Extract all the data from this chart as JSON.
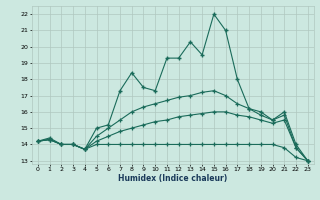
{
  "title": "",
  "xlabel": "Humidex (Indice chaleur)",
  "bg_color": "#cce8e0",
  "grid_color": "#b0c8c0",
  "line_color": "#1a6b5a",
  "xlim": [
    -0.5,
    23.5
  ],
  "ylim": [
    12.8,
    22.5
  ],
  "xticks": [
    0,
    1,
    2,
    3,
    4,
    5,
    6,
    7,
    8,
    9,
    10,
    11,
    12,
    13,
    14,
    15,
    16,
    17,
    18,
    19,
    20,
    21,
    22,
    23
  ],
  "yticks": [
    13,
    14,
    15,
    16,
    17,
    18,
    19,
    20,
    21,
    22
  ],
  "line1_x": [
    0,
    1,
    2,
    3,
    4,
    5,
    6,
    7,
    8,
    9,
    10,
    11,
    12,
    13,
    14,
    15,
    16,
    17,
    18,
    19,
    20,
    21,
    22,
    23
  ],
  "line1_y": [
    14.2,
    14.4,
    14.0,
    14.0,
    13.7,
    15.0,
    15.2,
    17.3,
    18.4,
    17.5,
    17.3,
    19.3,
    19.3,
    20.3,
    19.5,
    22.0,
    21.0,
    18.0,
    16.2,
    16.0,
    15.5,
    16.0,
    14.0,
    13.0
  ],
  "line2_x": [
    0,
    1,
    2,
    3,
    4,
    5,
    6,
    7,
    8,
    9,
    10,
    11,
    12,
    13,
    14,
    15,
    16,
    17,
    18,
    19,
    20,
    21,
    22,
    23
  ],
  "line2_y": [
    14.2,
    14.3,
    14.0,
    14.0,
    13.7,
    14.0,
    14.0,
    14.0,
    14.0,
    14.0,
    14.0,
    14.0,
    14.0,
    14.0,
    14.0,
    14.0,
    14.0,
    14.0,
    14.0,
    14.0,
    14.0,
    13.8,
    13.2,
    13.0
  ],
  "line3_x": [
    0,
    1,
    2,
    3,
    4,
    5,
    6,
    7,
    8,
    9,
    10,
    11,
    12,
    13,
    14,
    15,
    16,
    17,
    18,
    19,
    20,
    21,
    22,
    23
  ],
  "line3_y": [
    14.2,
    14.3,
    14.0,
    14.0,
    13.7,
    14.2,
    14.5,
    14.8,
    15.0,
    15.2,
    15.4,
    15.5,
    15.7,
    15.8,
    15.9,
    16.0,
    16.0,
    15.8,
    15.7,
    15.5,
    15.3,
    15.5,
    13.8,
    13.0
  ],
  "line4_x": [
    0,
    1,
    2,
    3,
    4,
    5,
    6,
    7,
    8,
    9,
    10,
    11,
    12,
    13,
    14,
    15,
    16,
    17,
    18,
    19,
    20,
    21,
    22,
    23
  ],
  "line4_y": [
    14.2,
    14.3,
    14.0,
    14.0,
    13.7,
    14.5,
    15.0,
    15.5,
    16.0,
    16.3,
    16.5,
    16.7,
    16.9,
    17.0,
    17.2,
    17.3,
    17.0,
    16.5,
    16.2,
    15.8,
    15.5,
    15.8,
    13.8,
    13.0
  ]
}
